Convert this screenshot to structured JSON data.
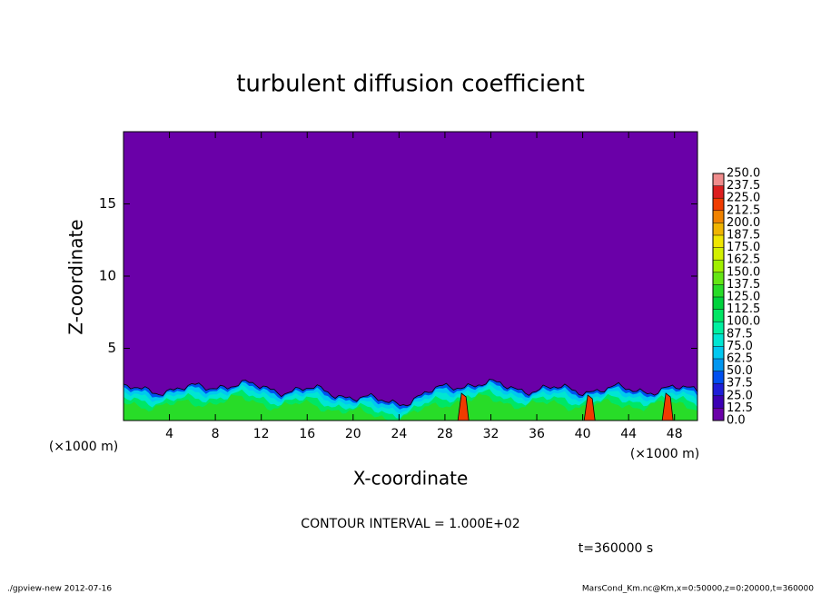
{
  "chart_data": {
    "type": "contour",
    "title": "turbulent diffusion coefficient",
    "xlabel": "X-coordinate",
    "ylabel": "Z-coordinate",
    "x_unit_left": "(×1000 m)",
    "x_unit_right": "(×1000 m)",
    "xlim": [
      0,
      50
    ],
    "xticks": [
      4,
      8,
      12,
      16,
      20,
      24,
      28,
      32,
      36,
      40,
      44,
      48
    ],
    "ylim": [
      0,
      20
    ],
    "yticks": [
      5,
      10,
      15
    ],
    "colorbar": {
      "levels": [
        {
          "value": 0,
          "label": "0.0"
        },
        {
          "value": 12.5,
          "label": "12.5"
        },
        {
          "value": 25,
          "label": "25.0"
        },
        {
          "value": 37.5,
          "label": "37.5"
        },
        {
          "value": 50,
          "label": "50.0"
        },
        {
          "value": 62.5,
          "label": "62.5"
        },
        {
          "value": 75,
          "label": "75.0"
        },
        {
          "value": 87.5,
          "label": "87.5"
        },
        {
          "value": 100,
          "label": "100.0"
        },
        {
          "value": 112.5,
          "label": "112.5"
        },
        {
          "value": 125,
          "label": "125.0"
        },
        {
          "value": 137.5,
          "label": "137.5"
        },
        {
          "value": 150,
          "label": "150.0"
        },
        {
          "value": 162.5,
          "label": "162.5"
        },
        {
          "value": 175,
          "label": "175.0"
        },
        {
          "value": 187.5,
          "label": "187.5"
        },
        {
          "value": 200,
          "label": "200.0"
        },
        {
          "value": 212.5,
          "label": "212.5"
        },
        {
          "value": 225,
          "label": "225.0"
        },
        {
          "value": 237.5,
          "label": "237.5"
        },
        {
          "value": 250,
          "label": "250.0"
        }
      ],
      "colors": [
        "#6a00a8",
        "#3c00b4",
        "#1e1ed8",
        "#0050f0",
        "#0096f0",
        "#00c8f0",
        "#00e6d2",
        "#00f0a0",
        "#00e664",
        "#00d23c",
        "#28dc28",
        "#64e614",
        "#a0f000",
        "#d2f000",
        "#f0e600",
        "#f0b400",
        "#f08200",
        "#f03c00",
        "#dc1e1e",
        "#f08c8c"
      ]
    },
    "contour_interval": "CONTOUR INTERVAL = 1.000E+02",
    "time_label": "t=360000 s",
    "footer_left": "./gpview-new  2012-07-16",
    "footer_right": "MarsCond_Km.nc@Km,x=0:50000,z=0:20000,t=360000"
  }
}
